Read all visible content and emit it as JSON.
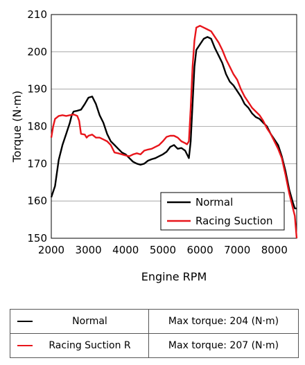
{
  "chart_data": {
    "type": "line",
    "xlabel": "Engine RPM",
    "ylabel": "Torque (N·m)",
    "xlim": [
      2000,
      8600
    ],
    "ylim": [
      150,
      210
    ],
    "x_ticks": [
      "2000",
      "3000",
      "4000",
      "5000",
      "6000",
      "7000",
      "8000"
    ],
    "y_ticks": [
      "150",
      "160",
      "170",
      "180",
      "190",
      "200",
      "210"
    ],
    "grid": "horizontal",
    "legend_position": "bottom-right",
    "series": [
      {
        "name": "Normal",
        "color": "#000000",
        "points": [
          [
            2000,
            161
          ],
          [
            2100,
            164
          ],
          [
            2200,
            171
          ],
          [
            2300,
            175
          ],
          [
            2400,
            178
          ],
          [
            2500,
            181
          ],
          [
            2550,
            183
          ],
          [
            2600,
            184
          ],
          [
            2700,
            184.2
          ],
          [
            2800,
            184.5
          ],
          [
            2900,
            186
          ],
          [
            3000,
            187.7
          ],
          [
            3100,
            188
          ],
          [
            3200,
            186
          ],
          [
            3300,
            183
          ],
          [
            3400,
            181
          ],
          [
            3500,
            178
          ],
          [
            3600,
            176
          ],
          [
            3700,
            175
          ],
          [
            3800,
            174
          ],
          [
            3900,
            173
          ],
          [
            4000,
            172.5
          ],
          [
            4100,
            171.5
          ],
          [
            4200,
            170.5
          ],
          [
            4300,
            170
          ],
          [
            4400,
            169.7
          ],
          [
            4500,
            170
          ],
          [
            4600,
            170.8
          ],
          [
            4700,
            171.2
          ],
          [
            4800,
            171.5
          ],
          [
            4900,
            172
          ],
          [
            5000,
            172.5
          ],
          [
            5100,
            173.2
          ],
          [
            5200,
            174.5
          ],
          [
            5300,
            175
          ],
          [
            5400,
            174
          ],
          [
            5500,
            174.2
          ],
          [
            5600,
            173.5
          ],
          [
            5650,
            172.5
          ],
          [
            5700,
            171.5
          ],
          [
            5750,
            176
          ],
          [
            5800,
            186
          ],
          [
            5850,
            196
          ],
          [
            5900,
            200.5
          ],
          [
            6000,
            202
          ],
          [
            6100,
            203.5
          ],
          [
            6200,
            204
          ],
          [
            6300,
            203.5
          ],
          [
            6400,
            201
          ],
          [
            6500,
            199
          ],
          [
            6600,
            197
          ],
          [
            6700,
            194
          ],
          [
            6800,
            192
          ],
          [
            6900,
            191
          ],
          [
            7000,
            189.5
          ],
          [
            7100,
            188
          ],
          [
            7200,
            186
          ],
          [
            7300,
            185
          ],
          [
            7400,
            183.5
          ],
          [
            7500,
            182.5
          ],
          [
            7600,
            182
          ],
          [
            7700,
            181
          ],
          [
            7800,
            180
          ],
          [
            7900,
            178
          ],
          [
            8000,
            176.5
          ],
          [
            8100,
            175
          ],
          [
            8200,
            172
          ],
          [
            8300,
            168
          ],
          [
            8400,
            163
          ],
          [
            8500,
            159.5
          ],
          [
            8550,
            158
          ],
          [
            8600,
            158
          ]
        ]
      },
      {
        "name": "Racing Suction",
        "color": "#e8151b",
        "points": [
          [
            2000,
            177
          ],
          [
            2050,
            180
          ],
          [
            2100,
            182
          ],
          [
            2200,
            182.8
          ],
          [
            2300,
            183
          ],
          [
            2400,
            182.8
          ],
          [
            2500,
            183
          ],
          [
            2600,
            183.2
          ],
          [
            2700,
            182.8
          ],
          [
            2750,
            181.5
          ],
          [
            2800,
            178
          ],
          [
            2900,
            177.8
          ],
          [
            2950,
            177
          ],
          [
            3000,
            177.5
          ],
          [
            3100,
            177.8
          ],
          [
            3200,
            177
          ],
          [
            3300,
            177
          ],
          [
            3400,
            176.5
          ],
          [
            3500,
            176
          ],
          [
            3600,
            175
          ],
          [
            3700,
            173
          ],
          [
            3800,
            172.8
          ],
          [
            3900,
            172.5
          ],
          [
            4000,
            172.2
          ],
          [
            4100,
            172
          ],
          [
            4200,
            172.5
          ],
          [
            4300,
            172.8
          ],
          [
            4400,
            172.5
          ],
          [
            4500,
            173.5
          ],
          [
            4600,
            173.8
          ],
          [
            4700,
            174
          ],
          [
            4800,
            174.5
          ],
          [
            4900,
            175
          ],
          [
            5000,
            176
          ],
          [
            5100,
            177.2
          ],
          [
            5200,
            177.5
          ],
          [
            5300,
            177.5
          ],
          [
            5400,
            177
          ],
          [
            5500,
            176
          ],
          [
            5600,
            175.5
          ],
          [
            5650,
            175.2
          ],
          [
            5700,
            176
          ],
          [
            5750,
            185
          ],
          [
            5800,
            196
          ],
          [
            5850,
            203
          ],
          [
            5900,
            206.5
          ],
          [
            6000,
            207
          ],
          [
            6100,
            206.5
          ],
          [
            6200,
            206
          ],
          [
            6300,
            205.5
          ],
          [
            6400,
            204
          ],
          [
            6500,
            202.5
          ],
          [
            6600,
            200.5
          ],
          [
            6700,
            198
          ],
          [
            6800,
            196
          ],
          [
            6900,
            194
          ],
          [
            7000,
            192.5
          ],
          [
            7100,
            190
          ],
          [
            7200,
            188
          ],
          [
            7300,
            186.5
          ],
          [
            7400,
            185
          ],
          [
            7500,
            184
          ],
          [
            7600,
            183
          ],
          [
            7700,
            181.5
          ],
          [
            7800,
            179.5
          ],
          [
            7900,
            178
          ],
          [
            8000,
            176
          ],
          [
            8100,
            174
          ],
          [
            8200,
            171.5
          ],
          [
            8300,
            167
          ],
          [
            8400,
            162
          ],
          [
            8500,
            158
          ],
          [
            8550,
            156
          ],
          [
            8600,
            150
          ]
        ]
      }
    ]
  },
  "table": {
    "rows": [
      {
        "label": "Normal",
        "max_text": "Max torque: 204 (N·m)",
        "color": "#000000"
      },
      {
        "label": "Racing Suction R",
        "max_text": "Max torque: 207 (N·m)",
        "color": "#e8151b"
      }
    ]
  }
}
